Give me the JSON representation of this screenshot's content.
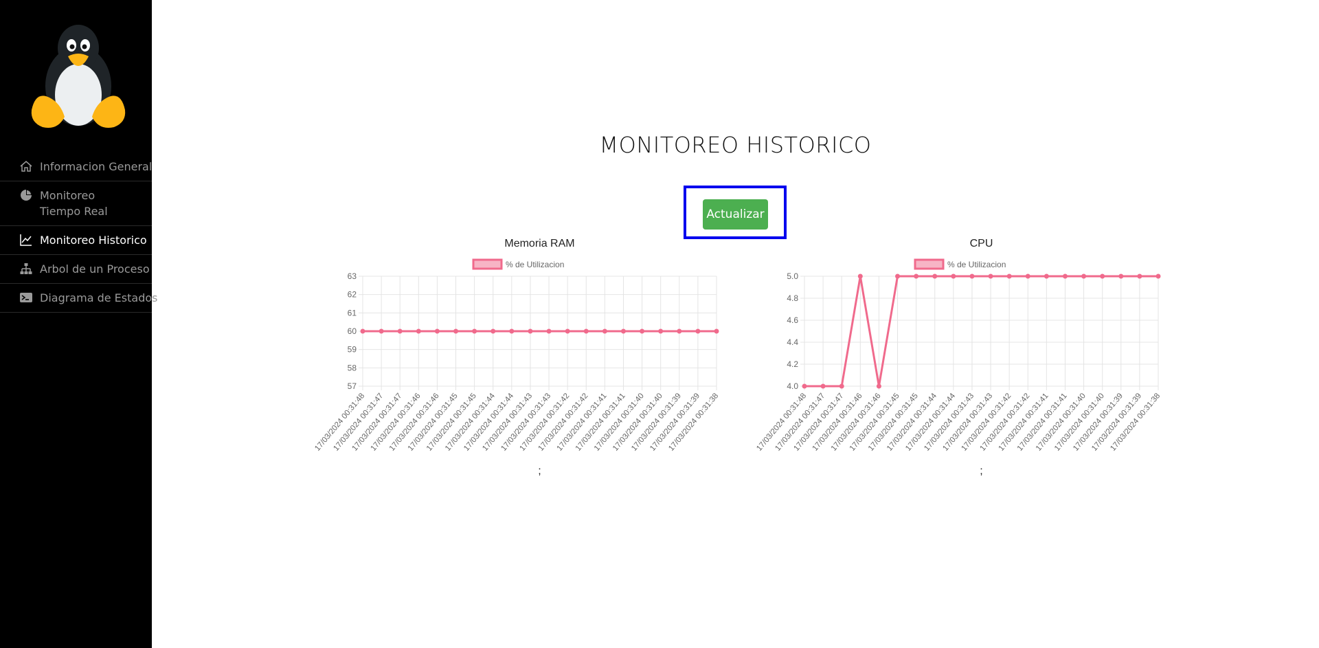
{
  "sidebar": {
    "logo_icon": "tux-penguin-logo",
    "items": [
      {
        "label": "Informacion General",
        "icon": "home-icon",
        "active": false
      },
      {
        "label": "Monitoreo Tiempo Real",
        "icon": "pie-chart-icon",
        "active": false
      },
      {
        "label": "Monitoreo Historico",
        "icon": "line-chart-icon",
        "active": true
      },
      {
        "label": "Arbol de un Proceso",
        "icon": "sitemap-icon",
        "active": false
      },
      {
        "label": "Diagrama de Estados",
        "icon": "terminal-icon",
        "active": false
      }
    ]
  },
  "main": {
    "title": "MONITOREO HISTORICO",
    "update_button": "Actualizar",
    "highlight_color": "#0000ee",
    "button_color": "#4caf50"
  },
  "chart_data": [
    {
      "type": "line",
      "title": "Memoria RAM",
      "footer": ";",
      "color": "#f06a8c",
      "categories": [
        "17/03/2024 00:31:48",
        "17/03/2024 00:31:47",
        "17/03/2024 00:31:47",
        "17/03/2024 00:31:46",
        "17/03/2024 00:31:46",
        "17/03/2024 00:31:45",
        "17/03/2024 00:31:45",
        "17/03/2024 00:31:44",
        "17/03/2024 00:31:44",
        "17/03/2024 00:31:43",
        "17/03/2024 00:31:43",
        "17/03/2024 00:31:42",
        "17/03/2024 00:31:42",
        "17/03/2024 00:31:41",
        "17/03/2024 00:31:41",
        "17/03/2024 00:31:40",
        "17/03/2024 00:31:40",
        "17/03/2024 00:31:39",
        "17/03/2024 00:31:39",
        "17/03/2024 00:31:38"
      ],
      "series": [
        {
          "name": "% de Utilizacion",
          "values": [
            60,
            60,
            60,
            60,
            60,
            60,
            60,
            60,
            60,
            60,
            60,
            60,
            60,
            60,
            60,
            60,
            60,
            60,
            60,
            60
          ]
        }
      ],
      "yticks": [
        "57",
        "58",
        "59",
        "60",
        "61",
        "62",
        "63"
      ],
      "ylim": [
        57,
        63
      ],
      "grid": true,
      "legend": "top-center"
    },
    {
      "type": "line",
      "title": "CPU",
      "footer": ";",
      "color": "#f06a8c",
      "categories": [
        "17/03/2024 00:31:48",
        "17/03/2024 00:31:47",
        "17/03/2024 00:31:47",
        "17/03/2024 00:31:46",
        "17/03/2024 00:31:46",
        "17/03/2024 00:31:45",
        "17/03/2024 00:31:45",
        "17/03/2024 00:31:44",
        "17/03/2024 00:31:44",
        "17/03/2024 00:31:43",
        "17/03/2024 00:31:43",
        "17/03/2024 00:31:42",
        "17/03/2024 00:31:42",
        "17/03/2024 00:31:41",
        "17/03/2024 00:31:41",
        "17/03/2024 00:31:40",
        "17/03/2024 00:31:40",
        "17/03/2024 00:31:39",
        "17/03/2024 00:31:39",
        "17/03/2024 00:31:38"
      ],
      "series": [
        {
          "name": "% de Utilizacion",
          "values": [
            4,
            4,
            4,
            5,
            4,
            5,
            5,
            5,
            5,
            5,
            5,
            5,
            5,
            5,
            5,
            5,
            5,
            5,
            5,
            5
          ]
        }
      ],
      "yticks": [
        "4.0",
        "4.2",
        "4.4",
        "4.6",
        "4.8",
        "5.0"
      ],
      "ylim": [
        4,
        5
      ],
      "grid": true,
      "legend": "top-center"
    }
  ]
}
